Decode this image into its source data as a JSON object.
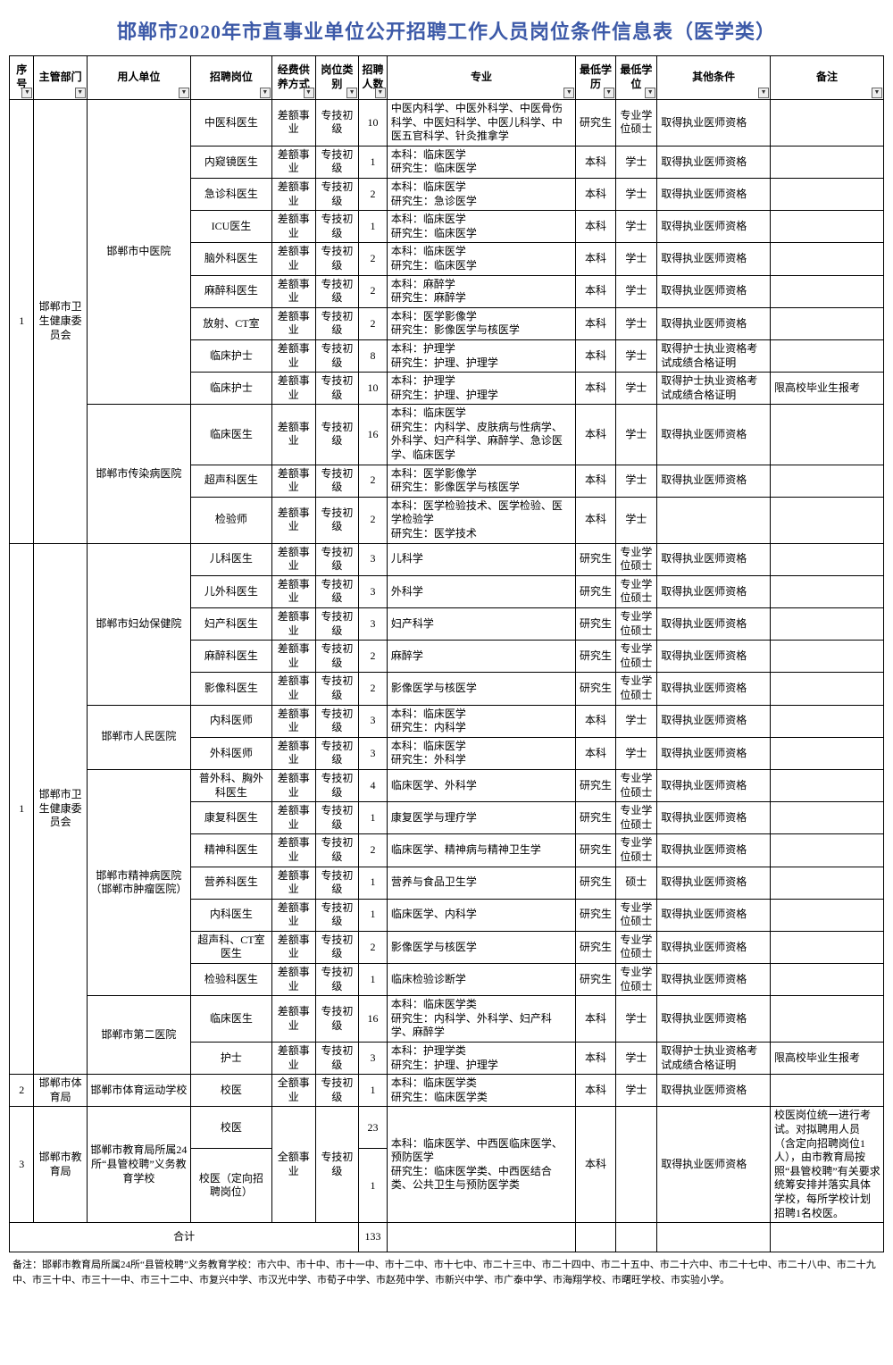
{
  "title": "邯郸市2020年市直事业单位公开招聘工作人员岗位条件信息表（医学类）",
  "headers": [
    "序号",
    "主管部门",
    "用人单位",
    "招聘岗位",
    "经费供养方式",
    "岗位类别",
    "招聘人数",
    "专业",
    "最低学历",
    "最低学位",
    "其他条件",
    "备注"
  ],
  "widths": [
    26,
    56,
    110,
    86,
    46,
    46,
    30,
    200,
    42,
    44,
    120,
    120
  ],
  "total_label": "合计",
  "total_value": "133",
  "footnote": "备注：邯郸市教育局所属24所“县管校聘”义务教育学校：市六中、市十中、市十一中、市十二中、市十七中、市二十三中、市二十四中、市二十五中、市二十六中、市二十七中、市二十八中、市二十九中、市三十中、市三十一中、市三十二中、市复兴中学、市汉光中学、市荀子中学、市赵苑中学、市新兴中学、市广泰中学、市海翔学校、市曙旺学校、市实验小学。",
  "rows": [
    {
      "seq": "1",
      "seq_rs": 12,
      "dept": "邯郸市卫生健康委员会",
      "dept_rs": 12,
      "unit": "邯郸市中医院",
      "unit_rs": 9,
      "post": "中医科医生",
      "fund": "差额事业",
      "cat": "专技初级",
      "num": "10",
      "major": "中医内科学、中医外科学、中医骨伤科学、中医妇科学、中医儿科学、中医五官科学、针灸推拿学",
      "edu": "研究生",
      "deg": "专业学位硕士",
      "other": "取得执业医师资格",
      "note": ""
    },
    {
      "post": "内窥镜医生",
      "fund": "差额事业",
      "cat": "专技初级",
      "num": "1",
      "major": "本科：临床医学\n研究生：临床医学",
      "edu": "本科",
      "deg": "学士",
      "other": "取得执业医师资格",
      "note": ""
    },
    {
      "post": "急诊科医生",
      "fund": "差额事业",
      "cat": "专技初级",
      "num": "2",
      "major": "本科：临床医学\n研究生：急诊医学",
      "edu": "本科",
      "deg": "学士",
      "other": "取得执业医师资格",
      "note": ""
    },
    {
      "post": "ICU医生",
      "fund": "差额事业",
      "cat": "专技初级",
      "num": "1",
      "major": "本科：临床医学\n研究生：临床医学",
      "edu": "本科",
      "deg": "学士",
      "other": "取得执业医师资格",
      "note": ""
    },
    {
      "post": "脑外科医生",
      "fund": "差额事业",
      "cat": "专技初级",
      "num": "2",
      "major": "本科：临床医学\n研究生：临床医学",
      "edu": "本科",
      "deg": "学士",
      "other": "取得执业医师资格",
      "note": ""
    },
    {
      "post": "麻醉科医生",
      "fund": "差额事业",
      "cat": "专技初级",
      "num": "2",
      "major": "本科：麻醉学\n研究生：麻醉学",
      "edu": "本科",
      "deg": "学士",
      "other": "取得执业医师资格",
      "note": ""
    },
    {
      "post": "放射、CT室",
      "fund": "差额事业",
      "cat": "专技初级",
      "num": "2",
      "major": "本科：医学影像学\n研究生：影像医学与核医学",
      "edu": "本科",
      "deg": "学士",
      "other": "取得执业医师资格",
      "note": ""
    },
    {
      "post": "临床护士",
      "fund": "差额事业",
      "cat": "专技初级",
      "num": "8",
      "major": "本科：护理学\n研究生：护理、护理学",
      "edu": "本科",
      "deg": "学士",
      "other": "取得护士执业资格考试成绩合格证明",
      "note": ""
    },
    {
      "post": "临床护士",
      "fund": "差额事业",
      "cat": "专技初级",
      "num": "10",
      "major": "本科：护理学\n研究生：护理、护理学",
      "edu": "本科",
      "deg": "学士",
      "other": "取得护士执业资格考试成绩合格证明",
      "note": "限高校毕业生报考"
    },
    {
      "unit": "邯郸市传染病医院",
      "unit_rs": 3,
      "post": "临床医生",
      "fund": "差额事业",
      "cat": "专技初级",
      "num": "16",
      "major": "本科：临床医学\n研究生：内科学、皮肤病与性病学、外科学、妇产科学、麻醉学、急诊医学、临床医学",
      "edu": "本科",
      "deg": "学士",
      "other": "取得执业医师资格",
      "note": ""
    },
    {
      "post": "超声科医生",
      "fund": "差额事业",
      "cat": "专技初级",
      "num": "2",
      "major": "本科：医学影像学\n研究生：影像医学与核医学",
      "edu": "本科",
      "deg": "学士",
      "other": "取得执业医师资格",
      "note": ""
    },
    {
      "post": "检验师",
      "fund": "差额事业",
      "cat": "专技初级",
      "num": "2",
      "major": "本科：医学检验技术、医学检验、医学检验学\n研究生：医学技术",
      "edu": "本科",
      "deg": "学士",
      "other": "",
      "note": ""
    },
    {
      "seq": "1",
      "seq_rs": 16,
      "dept": "邯郸市卫生健康委员会",
      "dept_rs": 16,
      "unit": "邯郸市妇幼保健院",
      "unit_rs": 5,
      "post": "儿科医生",
      "fund": "差额事业",
      "cat": "专技初级",
      "num": "3",
      "major": "儿科学",
      "edu": "研究生",
      "deg": "专业学位硕士",
      "other": "取得执业医师资格",
      "note": ""
    },
    {
      "post": "儿外科医生",
      "fund": "差额事业",
      "cat": "专技初级",
      "num": "3",
      "major": "外科学",
      "edu": "研究生",
      "deg": "专业学位硕士",
      "other": "取得执业医师资格",
      "note": ""
    },
    {
      "post": "妇产科医生",
      "fund": "差额事业",
      "cat": "专技初级",
      "num": "3",
      "major": "妇产科学",
      "edu": "研究生",
      "deg": "专业学位硕士",
      "other": "取得执业医师资格",
      "note": ""
    },
    {
      "post": "麻醉科医生",
      "fund": "差额事业",
      "cat": "专技初级",
      "num": "2",
      "major": "麻醉学",
      "edu": "研究生",
      "deg": "专业学位硕士",
      "other": "取得执业医师资格",
      "note": ""
    },
    {
      "post": "影像科医生",
      "fund": "差额事业",
      "cat": "专技初级",
      "num": "2",
      "major": "影像医学与核医学",
      "edu": "研究生",
      "deg": "专业学位硕士",
      "other": "取得执业医师资格",
      "note": ""
    },
    {
      "unit": "邯郸市人民医院",
      "unit_rs": 2,
      "post": "内科医师",
      "fund": "差额事业",
      "cat": "专技初级",
      "num": "3",
      "major": "本科：临床医学\n研究生：内科学",
      "edu": "本科",
      "deg": "学士",
      "other": "取得执业医师资格",
      "note": ""
    },
    {
      "post": "外科医师",
      "fund": "差额事业",
      "cat": "专技初级",
      "num": "3",
      "major": "本科：临床医学\n研究生：外科学",
      "edu": "本科",
      "deg": "学士",
      "other": "取得执业医师资格",
      "note": ""
    },
    {
      "unit": "邯郸市精神病医院（邯郸市肿瘤医院）",
      "unit_rs": 7,
      "post": "普外科、胸外科医生",
      "fund": "差额事业",
      "cat": "专技初级",
      "num": "4",
      "major": "临床医学、外科学",
      "edu": "研究生",
      "deg": "专业学位硕士",
      "other": "取得执业医师资格",
      "note": ""
    },
    {
      "post": "康复科医生",
      "fund": "差额事业",
      "cat": "专技初级",
      "num": "1",
      "major": "康复医学与理疗学",
      "edu": "研究生",
      "deg": "专业学位硕士",
      "other": "取得执业医师资格",
      "note": ""
    },
    {
      "post": "精神科医生",
      "fund": "差额事业",
      "cat": "专技初级",
      "num": "2",
      "major": "临床医学、精神病与精神卫生学",
      "edu": "研究生",
      "deg": "专业学位硕士",
      "other": "取得执业医师资格",
      "note": ""
    },
    {
      "post": "营养科医生",
      "fund": "差额事业",
      "cat": "专技初级",
      "num": "1",
      "major": "营养与食品卫生学",
      "edu": "研究生",
      "deg": "硕士",
      "other": "取得执业医师资格",
      "note": ""
    },
    {
      "post": "内科医生",
      "fund": "差额事业",
      "cat": "专技初级",
      "num": "1",
      "major": "临床医学、内科学",
      "edu": "研究生",
      "deg": "专业学位硕士",
      "other": "取得执业医师资格",
      "note": ""
    },
    {
      "post": "超声科、CT室医生",
      "fund": "差额事业",
      "cat": "专技初级",
      "num": "2",
      "major": "影像医学与核医学",
      "edu": "研究生",
      "deg": "专业学位硕士",
      "other": "取得执业医师资格",
      "note": ""
    },
    {
      "post": "检验科医生",
      "fund": "差额事业",
      "cat": "专技初级",
      "num": "1",
      "major": "临床检验诊断学",
      "edu": "研究生",
      "deg": "专业学位硕士",
      "other": "取得执业医师资格",
      "note": ""
    },
    {
      "unit": "邯郸市第二医院",
      "unit_rs": 2,
      "post": "临床医生",
      "fund": "差额事业",
      "cat": "专技初级",
      "num": "16",
      "major": "本科：临床医学类\n研究生：内科学、外科学、妇产科学、麻醉学",
      "edu": "本科",
      "deg": "学士",
      "other": "取得执业医师资格",
      "note": ""
    },
    {
      "post": "护士",
      "fund": "差额事业",
      "cat": "专技初级",
      "num": "3",
      "major": "本科：护理学类\n研究生：护理、护理学",
      "edu": "本科",
      "deg": "学士",
      "other": "取得护士执业资格考试成绩合格证明",
      "note": "限高校毕业生报考"
    },
    {
      "seq": "2",
      "dept": "邯郸市体育局",
      "unit": "邯郸市体育运动学校",
      "post": "校医",
      "fund": "全额事业",
      "cat": "专技初级",
      "num": "1",
      "major": "本科：临床医学类\n研究生：临床医学类",
      "edu": "本科",
      "deg": "学士",
      "other": "取得执业医师资格",
      "note": ""
    },
    {
      "seq": "3",
      "seq_rs": 2,
      "dept": "邯郸市教育局",
      "dept_rs": 2,
      "unit": "邯郸市教育局所属24所“县管校聘”义务教育学校",
      "unit_rs": 2,
      "post": "校医",
      "fund": "全额事业",
      "fund_rs": 2,
      "cat": "专技初级",
      "cat_rs": 2,
      "num": "23",
      "major": "本科：临床医学、中西医临床医学、预防医学\n研究生：临床医学类、中西医结合类、公共卫生与预防医学类",
      "major_rs": 2,
      "edu": "本科",
      "edu_rs": 2,
      "deg": "",
      "deg_rs": 2,
      "other": "取得执业医师资格",
      "other_rs": 2,
      "note": "校医岗位统一进行考试。对拟聘用人员（含定向招聘岗位1人），由市教育局按照“县管校聘”有关要求统筹安排并落实具体学校，每所学校计划招聘1名校医。",
      "note_rs": 2
    },
    {
      "post": "校医（定向招聘岗位）",
      "num": "1"
    }
  ]
}
